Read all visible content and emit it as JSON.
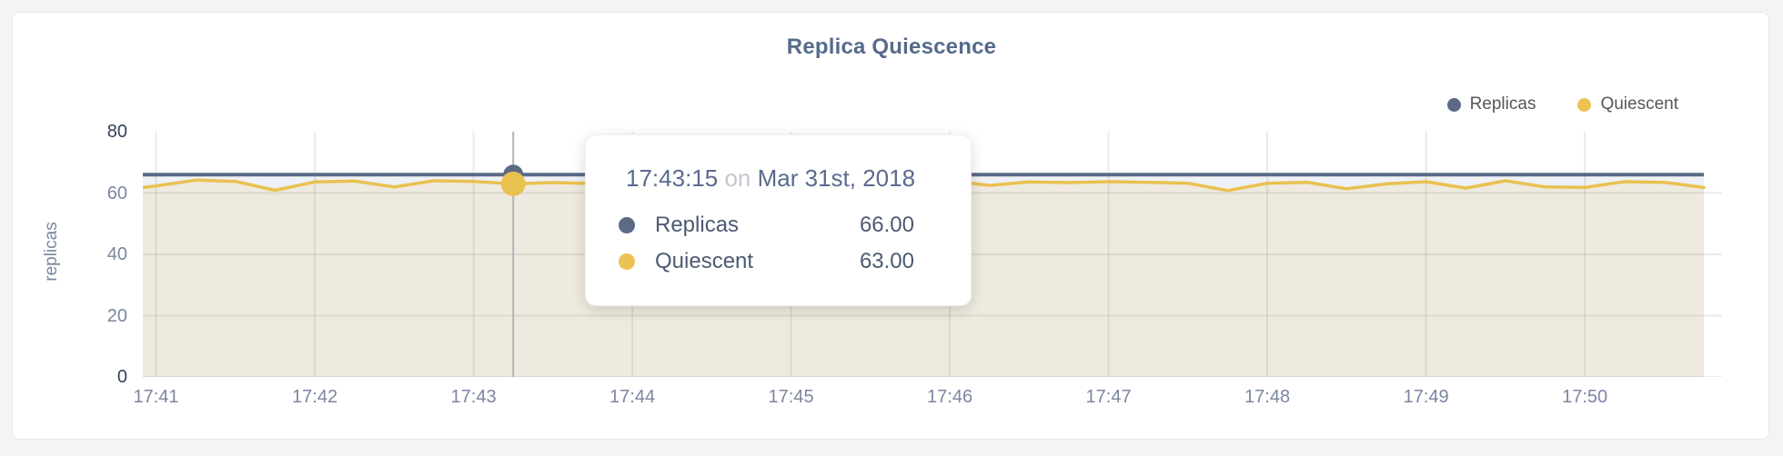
{
  "chart_data": {
    "type": "area",
    "title": "Replica Quiescence",
    "ylabel": "replicas",
    "ylim": [
      0,
      80
    ],
    "x_domain_seconds": [
      -5,
      585
    ],
    "y_ticks": [
      {
        "label": "80",
        "value": 80,
        "strong": true,
        "gridline": false
      },
      {
        "label": "60",
        "value": 60,
        "strong": false,
        "gridline": true
      },
      {
        "label": "40",
        "value": 40,
        "strong": false,
        "gridline": true
      },
      {
        "label": "20",
        "value": 20,
        "strong": false,
        "gridline": true
      },
      {
        "label": "0",
        "value": 0,
        "strong": true,
        "gridline": true
      }
    ],
    "x_ticks": [
      {
        "label": "17:41",
        "seconds": 0
      },
      {
        "label": "17:42",
        "seconds": 60
      },
      {
        "label": "17:43",
        "seconds": 120
      },
      {
        "label": "17:44",
        "seconds": 180
      },
      {
        "label": "17:45",
        "seconds": 240
      },
      {
        "label": "17:46",
        "seconds": 300
      },
      {
        "label": "17:47",
        "seconds": 360
      },
      {
        "label": "17:48",
        "seconds": 420
      },
      {
        "label": "17:49",
        "seconds": 480
      },
      {
        "label": "17:50",
        "seconds": 540
      }
    ],
    "x_seconds": [
      -5,
      0,
      15,
      30,
      45,
      60,
      75,
      90,
      105,
      120,
      135,
      150,
      165,
      180,
      195,
      210,
      225,
      240,
      255,
      270,
      285,
      300,
      315,
      330,
      345,
      360,
      375,
      390,
      405,
      420,
      435,
      450,
      465,
      480,
      495,
      510,
      525,
      540,
      555,
      570,
      585
    ],
    "series": [
      {
        "name": "Replicas",
        "color": "#5d6a86",
        "fill": "#eef1f5",
        "constant": 66
      },
      {
        "name": "Quiescent",
        "color": "#e9c150",
        "fill": "#efeadf",
        "values": [
          61.8,
          62.3,
          64.2,
          63.8,
          60.9,
          63.6,
          63.9,
          62.0,
          64.0,
          63.8,
          63.0,
          63.4,
          63.1,
          63.3,
          63.6,
          63.2,
          63.5,
          63.3,
          63.6,
          63.4,
          63.7,
          64.0,
          62.5,
          63.6,
          63.4,
          63.7,
          63.5,
          63.2,
          60.8,
          63.2,
          63.5,
          61.4,
          63.0,
          63.7,
          61.6,
          64.0,
          62.0,
          61.8,
          63.7,
          63.5,
          61.8
        ]
      }
    ],
    "highlight": {
      "seconds": 135,
      "replicas_value": 66,
      "quiescent_value": 63
    },
    "legend_position": "top-right",
    "grid": true
  },
  "legend": {
    "items": [
      {
        "label": "Replicas",
        "color": "#5d6a86"
      },
      {
        "label": "Quiescent",
        "color": "#ecc353"
      }
    ]
  },
  "tooltip": {
    "time": "17:43:15",
    "conjunction": "on",
    "date": "Mar 31st, 2018",
    "rows": [
      {
        "name": "Replicas",
        "value": "66.00",
        "color": "#5d6a86"
      },
      {
        "name": "Quiescent",
        "value": "63.00",
        "color": "#ecc353"
      }
    ]
  },
  "colors": {
    "title": "#566b8a",
    "axis_text": "#7b86a0",
    "axis_text_strong": "#333e5a",
    "gridline": "rgba(60,60,40,0.10)",
    "crosshair": "#b2b5ba",
    "card_background": "#ffffff",
    "page_background": "#f4f4f5"
  }
}
